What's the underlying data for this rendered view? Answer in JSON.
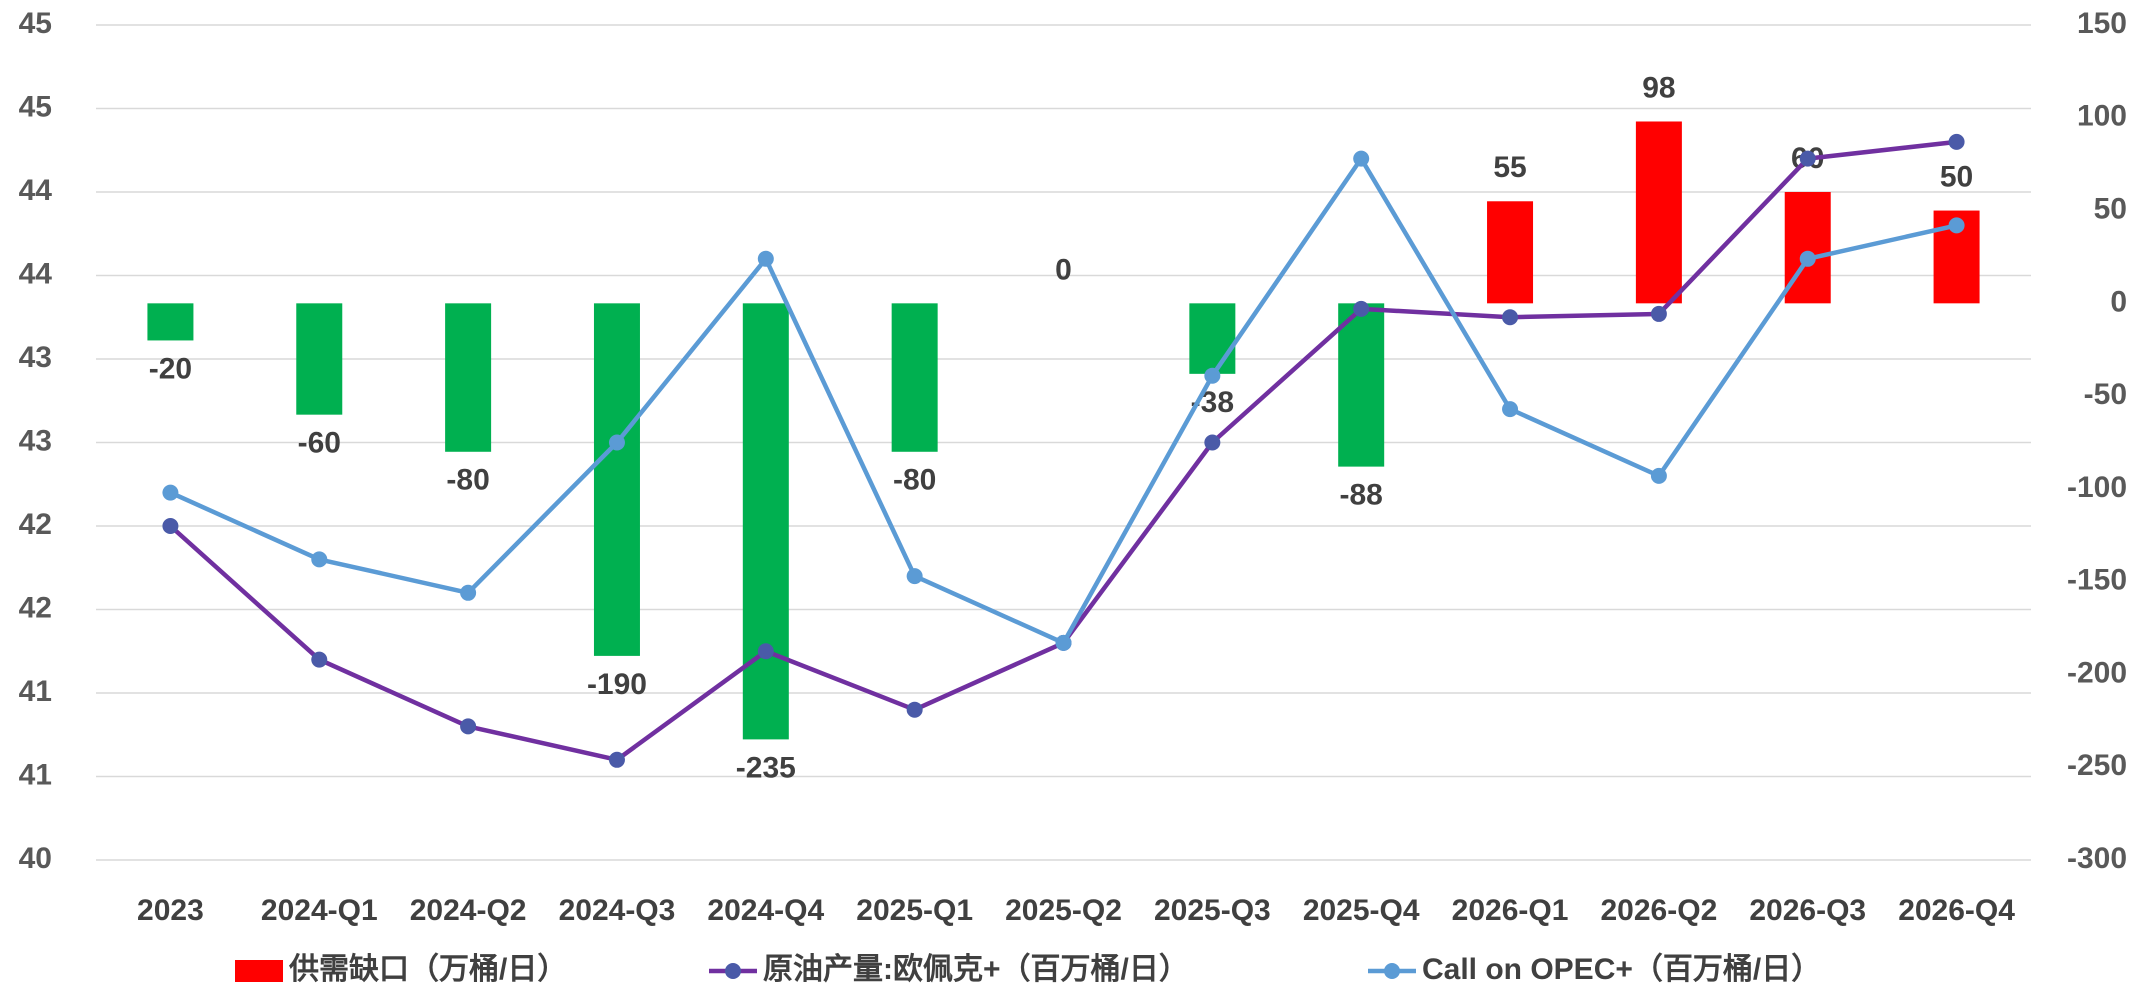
{
  "chart_data": {
    "type": "combo",
    "categories": [
      "2023",
      "2024-Q1",
      "2024-Q2",
      "2024-Q3",
      "2024-Q4",
      "2025-Q1",
      "2025-Q2",
      "2025-Q3",
      "2025-Q4",
      "2026-Q1",
      "2026-Q2",
      "2026-Q3",
      "2026-Q4"
    ],
    "series": [
      {
        "name": "供需缺口（万桶/日）",
        "type": "bar",
        "axis": "y2",
        "color": "#ff0000",
        "negative_color": "#00b050",
        "values": [
          -20,
          -60,
          -80,
          -190,
          -235,
          -80,
          0,
          -38,
          -88,
          55,
          98,
          60,
          50
        ]
      },
      {
        "name": "原油产量:欧佩克+（百万桶/日）",
        "type": "line",
        "color": "#7030a0",
        "marker_color": "#4a5aa8",
        "values": [
          42.0,
          41.2,
          40.8,
          40.6,
          41.25,
          40.9,
          41.3,
          42.5,
          43.3,
          43.25,
          43.27,
          44.2,
          44.3
        ]
      },
      {
        "name": "Call on OPEC+（百万桶/日）",
        "type": "line",
        "color": "#5b9bd5",
        "marker_color": "#5b9bd5",
        "values": [
          42.2,
          41.8,
          41.6,
          42.5,
          43.6,
          41.7,
          41.3,
          42.9,
          44.2,
          42.7,
          42.3,
          43.6,
          43.8
        ]
      }
    ],
    "ylim": [
      40,
      45
    ],
    "yticks": [
      40,
      {
        "value": 40.5,
        "label": "41"
      },
      41,
      {
        "value": 41.5,
        "label": "42"
      },
      42,
      {
        "value": 42.5,
        "label": "43"
      },
      43,
      {
        "value": 43.5,
        "label": "44"
      },
      44,
      {
        "value": 44.5,
        "label": "45"
      },
      45
    ],
    "y2lim": [
      -300,
      150
    ],
    "y2ticks": [
      -300,
      -250,
      -200,
      -150,
      -100,
      -50,
      0,
      50,
      100,
      150
    ],
    "grid": true,
    "legend": "bottom"
  }
}
